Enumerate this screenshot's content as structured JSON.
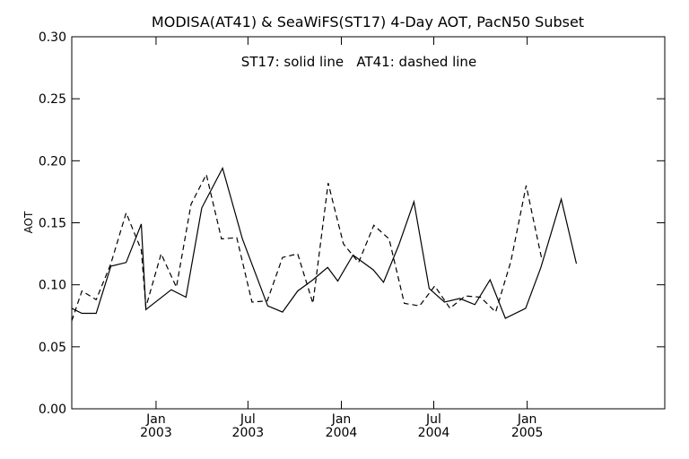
{
  "chart_data": {
    "type": "line",
    "title": "MODISA(AT41) & SeaWiFS(ST17) 4-Day AOT, PacN50 Subset",
    "annotation": "ST17: solid line   AT41: dashed line",
    "xlabel": "",
    "ylabel": "AOT",
    "ylim": [
      0.0,
      0.3
    ],
    "xlim": [
      "2002-07-19",
      "2005-09-29"
    ],
    "grid": false,
    "y_ticks": [
      "0.00",
      "0.05",
      "0.10",
      "0.15",
      "0.20",
      "0.25",
      "0.30"
    ],
    "x_ticks": [
      {
        "date": "2003-01-01",
        "month": "Jan",
        "year": "2003"
      },
      {
        "date": "2003-07-01",
        "month": "Jul",
        "year": "2003"
      },
      {
        "date": "2004-01-01",
        "month": "Jan",
        "year": "2004"
      },
      {
        "date": "2004-07-01",
        "month": "Jul",
        "year": "2004"
      },
      {
        "date": "2005-01-01",
        "month": "Jan",
        "year": "2005"
      }
    ],
    "series": [
      {
        "name": "ST17",
        "style": "solid",
        "color": "#000000",
        "points": [
          [
            "2002-07-19",
            0.081
          ],
          [
            "2002-08-08",
            0.077
          ],
          [
            "2002-09-05",
            0.077
          ],
          [
            "2002-10-04",
            0.115
          ],
          [
            "2002-11-03",
            0.118
          ],
          [
            "2002-12-03",
            0.149
          ],
          [
            "2002-12-12",
            0.08
          ],
          [
            "2003-01-31",
            0.096
          ],
          [
            "2003-03-01",
            0.09
          ],
          [
            "2003-04-01",
            0.162
          ],
          [
            "2003-05-12",
            0.194
          ],
          [
            "2003-06-20",
            0.137
          ],
          [
            "2003-08-09",
            0.083
          ],
          [
            "2003-09-07",
            0.078
          ],
          [
            "2003-10-07",
            0.095
          ],
          [
            "2003-11-06",
            0.104
          ],
          [
            "2003-12-05",
            0.114
          ],
          [
            "2003-12-25",
            0.103
          ],
          [
            "2004-01-24",
            0.124
          ],
          [
            "2004-03-04",
            0.112
          ],
          [
            "2004-03-24",
            0.102
          ],
          [
            "2004-04-23",
            0.132
          ],
          [
            "2004-05-23",
            0.167
          ],
          [
            "2004-06-22",
            0.097
          ],
          [
            "2004-07-22",
            0.086
          ],
          [
            "2004-08-21",
            0.089
          ],
          [
            "2004-09-20",
            0.084
          ],
          [
            "2004-10-20",
            0.104
          ],
          [
            "2004-11-19",
            0.073
          ],
          [
            "2004-12-29",
            0.081
          ],
          [
            "2005-01-28",
            0.114
          ],
          [
            "2005-03-09",
            0.169
          ],
          [
            "2005-04-08",
            0.117
          ]
        ]
      },
      {
        "name": "AT41",
        "style": "dashed",
        "color": "#000000",
        "points": [
          [
            "2002-07-19",
            0.071
          ],
          [
            "2002-08-08",
            0.095
          ],
          [
            "2002-09-05",
            0.088
          ],
          [
            "2002-10-04",
            0.117
          ],
          [
            "2002-11-03",
            0.158
          ],
          [
            "2002-12-03",
            0.128
          ],
          [
            "2002-12-12",
            0.082
          ],
          [
            "2003-01-11",
            0.125
          ],
          [
            "2003-02-10",
            0.098
          ],
          [
            "2003-03-11",
            0.165
          ],
          [
            "2003-04-10",
            0.189
          ],
          [
            "2003-05-10",
            0.137
          ],
          [
            "2003-06-09",
            0.138
          ],
          [
            "2003-07-09",
            0.086
          ],
          [
            "2003-08-08",
            0.087
          ],
          [
            "2003-09-07",
            0.122
          ],
          [
            "2003-10-07",
            0.125
          ],
          [
            "2003-11-06",
            0.085
          ],
          [
            "2003-12-06",
            0.182
          ],
          [
            "2004-01-05",
            0.133
          ],
          [
            "2004-02-04",
            0.118
          ],
          [
            "2004-03-05",
            0.148
          ],
          [
            "2004-04-04",
            0.137
          ],
          [
            "2004-05-04",
            0.085
          ],
          [
            "2004-06-03",
            0.083
          ],
          [
            "2004-07-03",
            0.099
          ],
          [
            "2004-08-02",
            0.081
          ],
          [
            "2004-09-01",
            0.091
          ],
          [
            "2004-10-01",
            0.09
          ],
          [
            "2004-10-31",
            0.078
          ],
          [
            "2004-11-30",
            0.119
          ],
          [
            "2004-12-30",
            0.18
          ],
          [
            "2005-01-29",
            0.122
          ]
        ]
      }
    ]
  }
}
